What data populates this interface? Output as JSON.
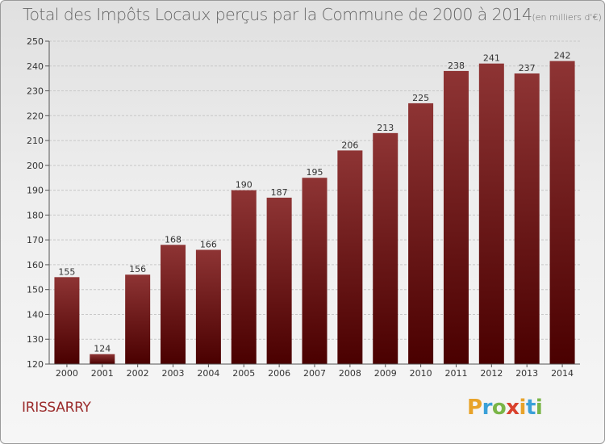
{
  "title": {
    "main": "Total des Impôts Locaux perçus par la Commune de 2000 à 2014",
    "unit": "(en milliers d'€)"
  },
  "commune": "IRISSARRY",
  "brand": {
    "letters": [
      "P",
      "r",
      "o",
      "x",
      "i",
      "t",
      "i"
    ],
    "colors": [
      "#e8a32a",
      "#3aa0d8",
      "#7ab547",
      "#d9412d",
      "#e8a32a",
      "#3aa0d8",
      "#7ab547"
    ]
  },
  "colors": {
    "bar_top": "#8e3434",
    "bar_bottom": "#4a0000",
    "grid": "#c8c8c8",
    "axis_text": "#333333"
  },
  "chart_data": {
    "type": "bar",
    "title": "Total des Impôts Locaux perçus par la Commune de 2000 à 2014",
    "xlabel": "",
    "ylabel": "en milliers d'€",
    "ylim": [
      120,
      250
    ],
    "yticks": [
      120,
      130,
      140,
      150,
      160,
      170,
      180,
      190,
      200,
      210,
      220,
      230,
      240,
      250
    ],
    "grid": true,
    "categories": [
      "2000",
      "2001",
      "2002",
      "2003",
      "2004",
      "2005",
      "2006",
      "2007",
      "2008",
      "2009",
      "2010",
      "2011",
      "2012",
      "2013",
      "2014"
    ],
    "values": [
      155,
      124,
      156,
      168,
      166,
      190,
      187,
      195,
      206,
      213,
      225,
      238,
      241,
      237,
      242
    ]
  }
}
